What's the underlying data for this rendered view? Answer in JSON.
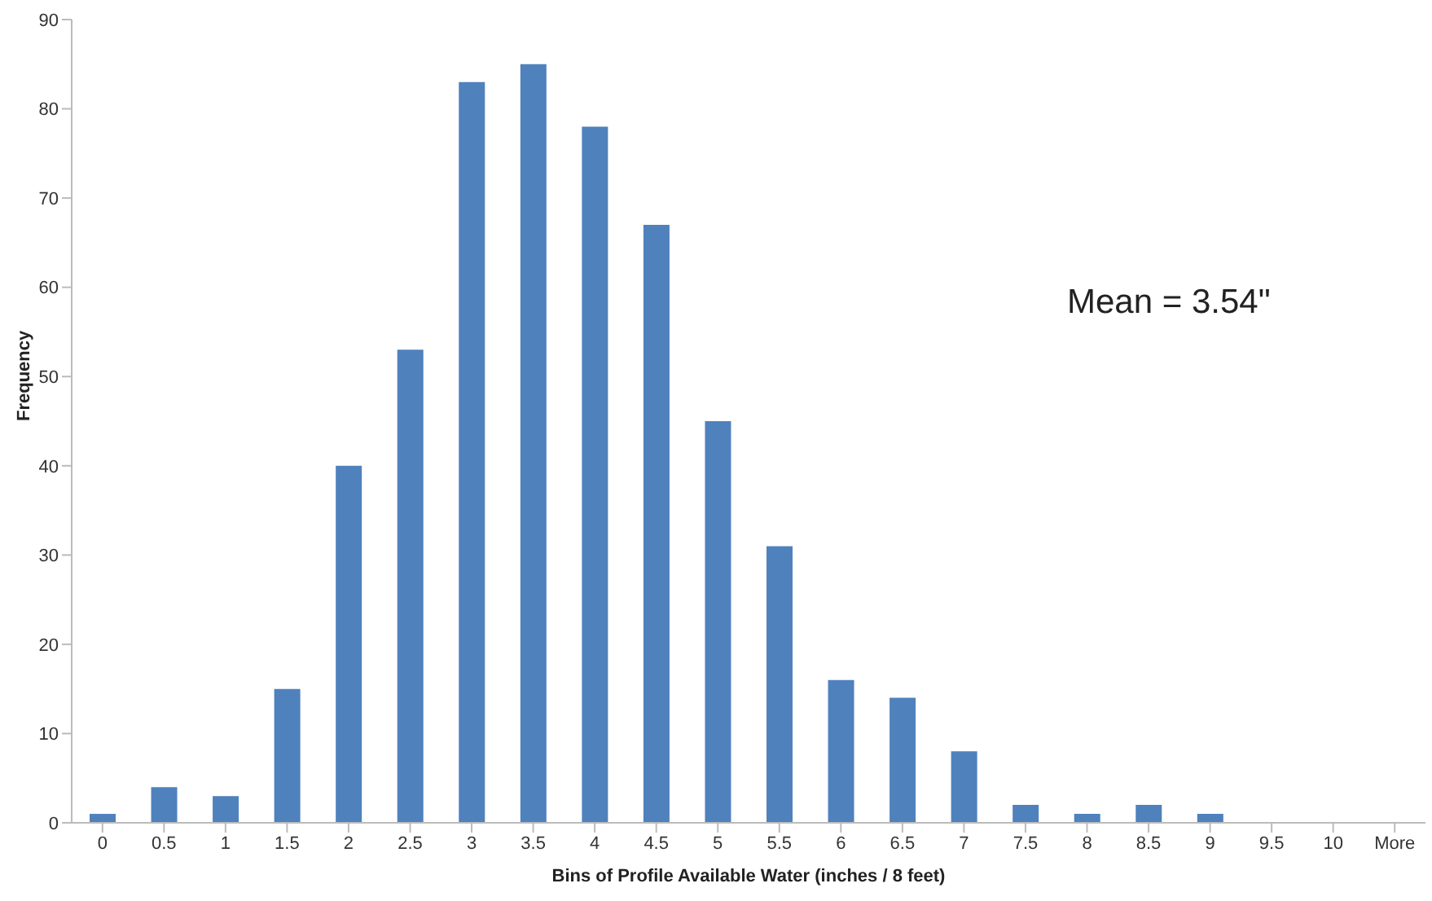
{
  "chart_data": {
    "type": "bar",
    "xlabel": "Bins of Profile Available Water (inches / 8 feet)",
    "ylabel": "Frequency",
    "categories": [
      "0",
      "0.5",
      "1",
      "1.5",
      "2",
      "2.5",
      "3",
      "3.5",
      "4",
      "4.5",
      "5",
      "5.5",
      "6",
      "6.5",
      "7",
      "7.5",
      "8",
      "8.5",
      "9",
      "9.5",
      "10",
      "More"
    ],
    "values": [
      1,
      4,
      3,
      15,
      40,
      53,
      83,
      85,
      78,
      67,
      45,
      31,
      16,
      14,
      8,
      2,
      1,
      2,
      1,
      0,
      0,
      0
    ],
    "color": "#4f81bd",
    "ylim": [
      0,
      90
    ],
    "yticks": [
      0,
      10,
      20,
      30,
      40,
      50,
      60,
      70,
      80,
      90
    ],
    "grid": false,
    "annotations": [
      "Mean = 3.54\""
    ]
  }
}
